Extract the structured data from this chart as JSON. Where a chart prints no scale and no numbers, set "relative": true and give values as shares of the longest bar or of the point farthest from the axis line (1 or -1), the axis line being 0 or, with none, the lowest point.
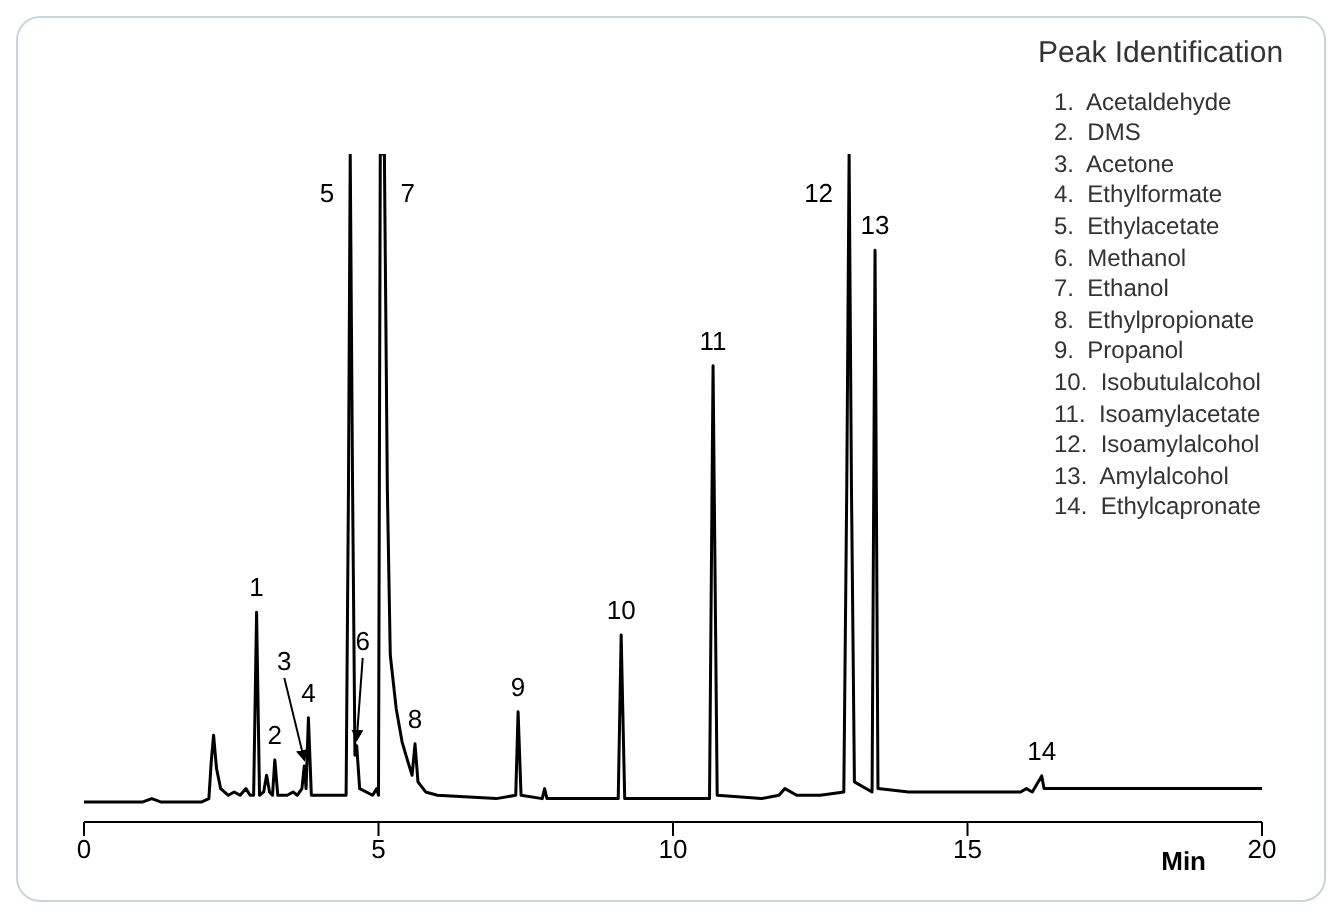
{
  "chart_data": {
    "type": "line",
    "relative": true,
    "xlabel": "Min",
    "xlim": [
      0,
      20
    ],
    "xticks": [
      0,
      5,
      10,
      15,
      20
    ],
    "marker": "none",
    "x": [
      0,
      0.5,
      1.0,
      1.15,
      1.3,
      2.0,
      2.12,
      2.16,
      2.2,
      2.25,
      2.32,
      2.45,
      2.55,
      2.65,
      2.75,
      2.82,
      2.88,
      2.93,
      2.98,
      3.05,
      3.1,
      3.15,
      3.2,
      3.24,
      3.29,
      3.45,
      3.55,
      3.62,
      3.7,
      3.74,
      3.77,
      3.81,
      3.86,
      4.2,
      4.45,
      4.49,
      4.52,
      4.56,
      4.6,
      4.63,
      4.68,
      4.9,
      4.97,
      5.0,
      5.03,
      5.1,
      5.15,
      5.2,
      5.3,
      5.4,
      5.5,
      5.57,
      5.62,
      5.67,
      5.8,
      6.0,
      7.0,
      7.33,
      7.37,
      7.42,
      7.78,
      7.82,
      7.86,
      9.07,
      9.12,
      9.18,
      10.62,
      10.68,
      10.75,
      11.5,
      11.8,
      11.9,
      12.1,
      12.5,
      12.9,
      12.95,
      12.99,
      13.03,
      13.08,
      13.38,
      13.43,
      13.48,
      14.0,
      15.0,
      15.9,
      16.0,
      16.1,
      16.26,
      16.3,
      17.0,
      18.0,
      20.0
    ],
    "series": [
      {
        "color": "#000000",
        "values": [
          0.03,
          0.03,
          0.03,
          0.035,
          0.03,
          0.03,
          0.035,
          0.09,
          0.13,
          0.08,
          0.05,
          0.04,
          0.045,
          0.04,
          0.05,
          0.04,
          0.04,
          0.314,
          0.04,
          0.045,
          0.07,
          0.045,
          0.04,
          0.093,
          0.04,
          0.04,
          0.045,
          0.04,
          0.05,
          0.084,
          0.05,
          0.156,
          0.04,
          0.04,
          0.04,
          0.5,
          1,
          0.5,
          0.1,
          0.114,
          0.05,
          0.04,
          0.05,
          0.04,
          1,
          1,
          0.5,
          0.25,
          0.17,
          0.12,
          0.09,
          0.07,
          0.117,
          0.06,
          0.045,
          0.04,
          0.035,
          0.04,
          0.165,
          0.04,
          0.035,
          0.05,
          0.035,
          0.035,
          0.28,
          0.035,
          0.035,
          0.683,
          0.04,
          0.035,
          0.04,
          0.05,
          0.04,
          0.04,
          0.045,
          0.5,
          1,
          0.5,
          0.06,
          0.045,
          0.856,
          0.05,
          0.045,
          0.045,
          0.045,
          0.05,
          0.045,
          0.069,
          0.05,
          0.05,
          0.05,
          0.05
        ]
      }
    ],
    "annotations": [
      {
        "text": "1",
        "x": 2.93,
        "y": 0.314
      },
      {
        "text": "2",
        "x": 3.24,
        "y": 0.093
      },
      {
        "text": "3",
        "x": 3.74,
        "y": 0.084
      },
      {
        "text": "4",
        "x": 3.81,
        "y": 0.156
      },
      {
        "text": "5",
        "x": 4.52,
        "y": 1
      },
      {
        "text": "6",
        "x": 4.63,
        "y": 0.114
      },
      {
        "text": "7",
        "x": 5.1,
        "y": 1
      },
      {
        "text": "8",
        "x": 5.62,
        "y": 0.117
      },
      {
        "text": "9",
        "x": 7.37,
        "y": 0.165
      },
      {
        "text": "10",
        "x": 9.12,
        "y": 0.28
      },
      {
        "text": "11",
        "x": 10.68,
        "y": 0.683
      },
      {
        "text": "12",
        "x": 12.99,
        "y": 1
      },
      {
        "text": "13",
        "x": 13.43,
        "y": 0.856
      },
      {
        "text": "14",
        "x": 16.26,
        "y": 0.069
      },
      "Peak Identification",
      "1.  Acetaldehyde",
      "2.  DMS",
      "3.  Acetone",
      "4.  Ethylformate",
      "5.  Ethylacetate",
      "6.  Methanol",
      "7.  Ethanol",
      "8.  Ethylpropionate",
      "9.  Propanol",
      "10.  Isobutulalcohol",
      "11.  Isoamylacetate",
      "12.  Isoamylalcohol",
      "13.  Amylalcohol",
      "14.  Ethylcapronate"
    ]
  }
}
